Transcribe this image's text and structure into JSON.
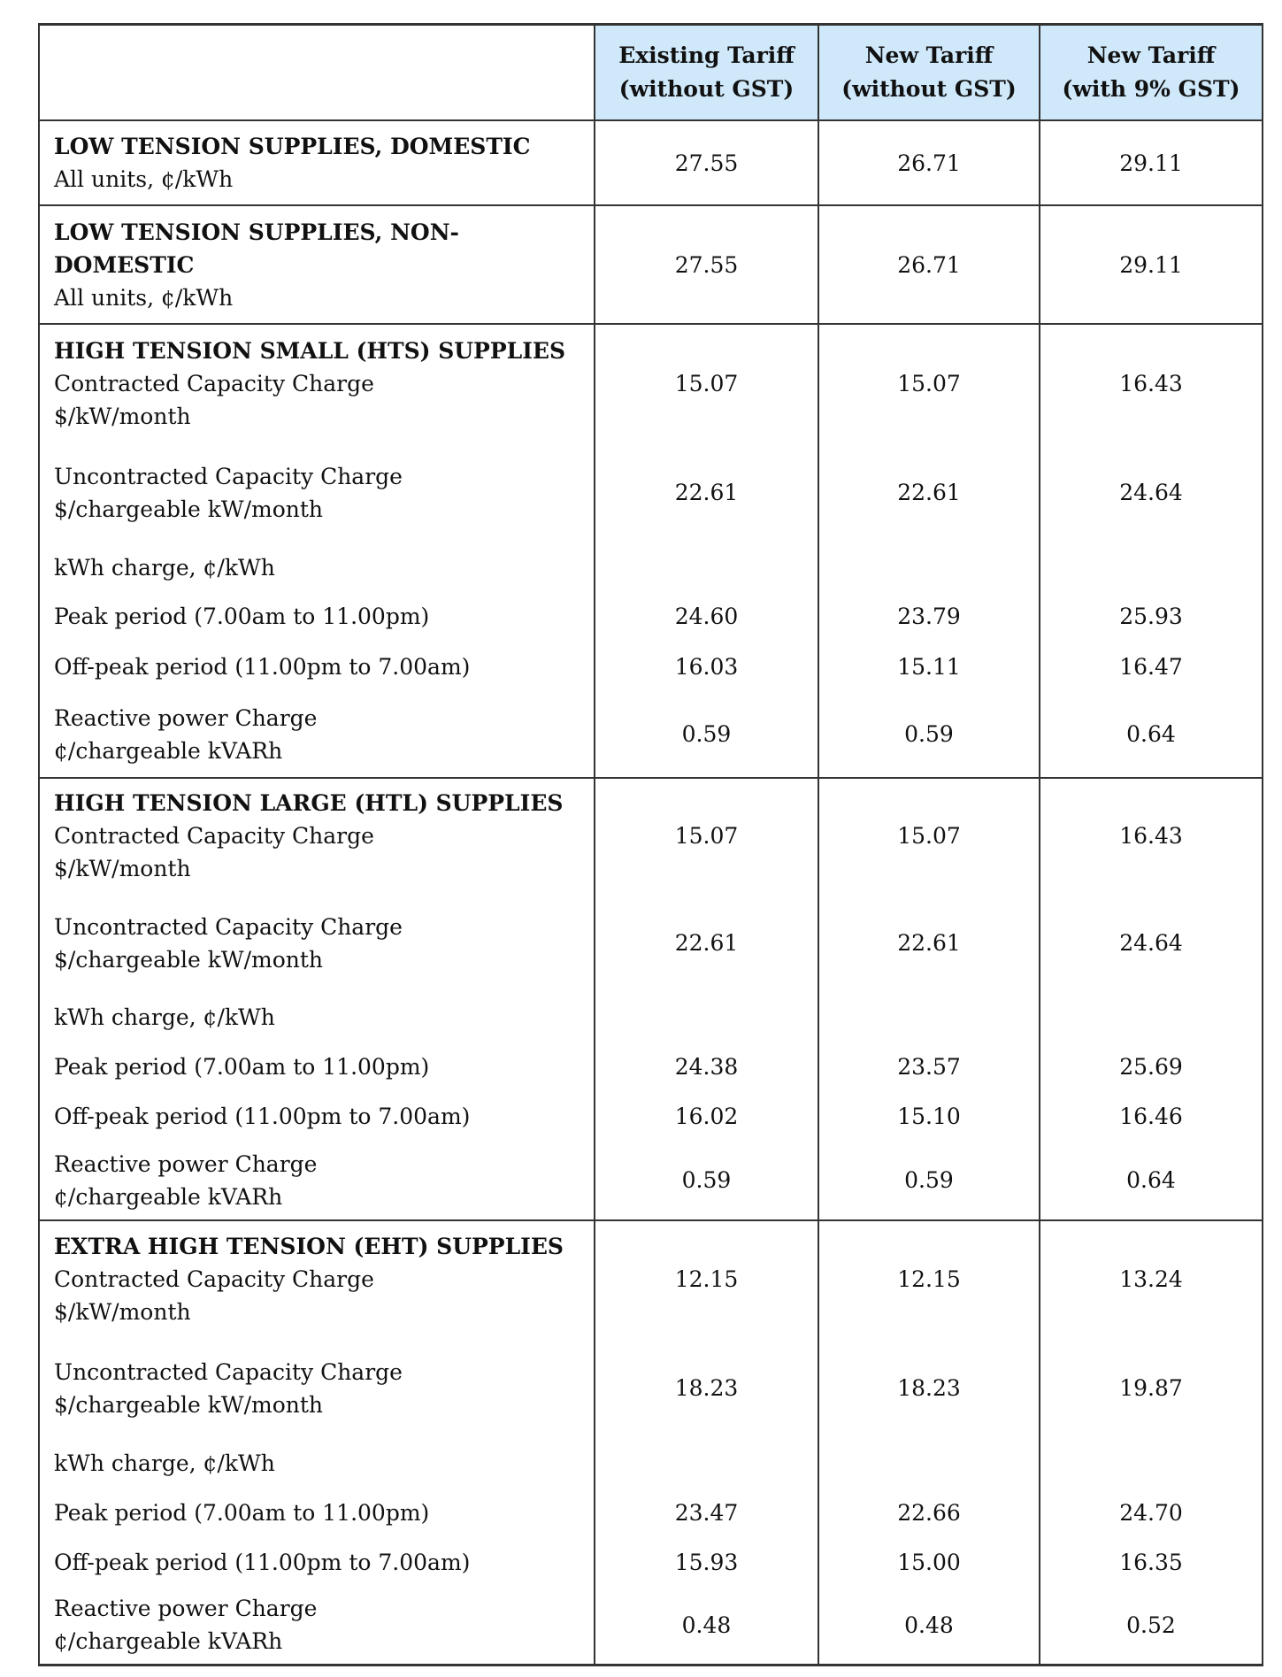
{
  "header": [
    "",
    "Existing Tariff (without GST)",
    "New Tariff (without GST)",
    "New Tariff (with 9% GST)"
  ],
  "header_lines": [
    [
      "Existing Tariff",
      "(without GST)"
    ],
    [
      "New Tariff",
      "(without GST)"
    ],
    [
      "New Tariff",
      "(with 9% GST)"
    ]
  ],
  "header_bg": "#cfe9fb",
  "sections": [
    {
      "title": "LOW TENSION SUPPLIES, DOMESTIC",
      "rows": [
        {
          "lines": [
            "All units, ¢/kWh"
          ],
          "values": [
            "27.55",
            "26.71",
            "29.11"
          ]
        }
      ]
    },
    {
      "title": "LOW TENSION SUPPLIES, NON-DOMESTIC",
      "title_lines": [
        "LOW TENSION SUPPLIES, NON-",
        "DOMESTIC"
      ],
      "rows": [
        {
          "lines": [
            "All units, ¢/kWh"
          ],
          "values": [
            "27.55",
            "26.71",
            "29.11"
          ]
        }
      ]
    },
    {
      "title": "HIGH TENSION SMALL (HTS) SUPPLIES",
      "rows": [
        {
          "lines": [
            "Contracted Capacity Charge",
            "$/kW/month"
          ],
          "values": [
            "15.07",
            "15.07",
            "16.43"
          ]
        },
        {
          "lines": [
            "Uncontracted Capacity Charge",
            "$/chargeable kW/month"
          ],
          "values": [
            "22.61",
            "22.61",
            "24.64"
          ]
        },
        {
          "lines": [
            "kWh charge, ¢/kWh"
          ],
          "values": [
            "",
            "",
            ""
          ]
        },
        {
          "lines": [
            "Peak period (7.00am to 11.00pm)"
          ],
          "values": [
            "24.60",
            "23.79",
            "25.93"
          ]
        },
        {
          "lines": [
            "Off-peak period (11.00pm to 7.00am)"
          ],
          "values": [
            "16.03",
            "15.11",
            "16.47"
          ]
        },
        {
          "lines": [
            "Reactive power Charge",
            "¢/chargeable kVARh"
          ],
          "values": [
            "0.59",
            "0.59",
            "0.64"
          ]
        }
      ]
    },
    {
      "title": "HIGH TENSION LARGE (HTL) SUPPLIES",
      "rows": [
        {
          "lines": [
            "Contracted Capacity Charge",
            "$/kW/month"
          ],
          "values": [
            "15.07",
            "15.07",
            "16.43"
          ]
        },
        {
          "lines": [
            "Uncontracted Capacity Charge",
            "$/chargeable kW/month"
          ],
          "values": [
            "22.61",
            "22.61",
            "24.64"
          ]
        },
        {
          "lines": [
            "kWh charge, ¢/kWh"
          ],
          "values": [
            "",
            "",
            ""
          ]
        },
        {
          "lines": [
            "Peak period (7.00am to 11.00pm)"
          ],
          "values": [
            "24.38",
            "23.57",
            "25.69"
          ]
        },
        {
          "lines": [
            "Off-peak period (11.00pm to 7.00am)"
          ],
          "values": [
            "16.02",
            "15.10",
            "16.46"
          ]
        },
        {
          "lines": [
            "Reactive power Charge",
            "¢/chargeable kVARh"
          ],
          "values": [
            "0.59",
            "0.59",
            "0.64"
          ]
        }
      ]
    },
    {
      "title": "EXTRA HIGH TENSION (EHT) SUPPLIES",
      "rows": [
        {
          "lines": [
            "Contracted Capacity Charge",
            "$/kW/month"
          ],
          "values": [
            "12.15",
            "12.15",
            "13.24"
          ]
        },
        {
          "lines": [
            "Uncontracted Capacity Charge",
            "$/chargeable kW/month"
          ],
          "values": [
            "18.23",
            "18.23",
            "19.87"
          ]
        },
        {
          "lines": [
            "kWh charge, ¢/kWh"
          ],
          "values": [
            "",
            "",
            ""
          ]
        },
        {
          "lines": [
            "Peak period (7.00am to 11.00pm)"
          ],
          "values": [
            "23.47",
            "22.66",
            "24.70"
          ]
        },
        {
          "lines": [
            "Off-peak period (11.00pm to 7.00am)"
          ],
          "values": [
            "15.93",
            "15.00",
            "16.35"
          ]
        },
        {
          "lines": [
            "Reactive power Charge",
            "¢/chargeable kVARh"
          ],
          "values": [
            "0.48",
            "0.48",
            "0.52"
          ]
        }
      ]
    }
  ]
}
